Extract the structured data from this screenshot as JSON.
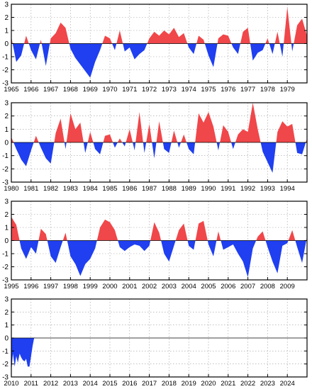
{
  "colors": {
    "positive": "#f0474a",
    "negative": "#1f3ff0",
    "frame": "#000000",
    "grid": "#9a9a9a"
  },
  "chart_data": [
    {
      "type": "area",
      "yticks": [
        3,
        2,
        1,
        0,
        -1,
        -2,
        -3
      ],
      "ylim": [
        -3,
        3
      ],
      "xlim": [
        1965,
        1980
      ],
      "xticks": [
        "1965",
        "1966",
        "1967",
        "1968",
        "1969",
        "1970",
        "1971",
        "1972",
        "1973",
        "1974",
        "1975",
        "1976",
        "1977",
        "1978",
        "1979"
      ],
      "grid": true,
      "series": [
        {
          "x": [
            1965.0,
            1965.25,
            1965.5,
            1965.75,
            1966.0,
            1966.25,
            1966.5,
            1966.75,
            1967.0,
            1967.25,
            1967.5,
            1967.75,
            1968.0,
            1968.25,
            1968.5,
            1968.75,
            1969.0,
            1969.25,
            1969.5,
            1969.75,
            1970.0,
            1970.25,
            1970.5,
            1970.75,
            1971.0,
            1971.25,
            1971.5,
            1971.75,
            1972.0,
            1972.25,
            1972.5,
            1972.75,
            1973.0,
            1973.25,
            1973.5,
            1973.75,
            1974.0,
            1974.25,
            1974.5,
            1974.75,
            1975.0,
            1975.25,
            1975.5,
            1975.75,
            1976.0,
            1976.25,
            1976.5,
            1976.75,
            1977.0,
            1977.25,
            1977.5,
            1977.75,
            1978.0,
            1978.25,
            1978.5,
            1978.75,
            1979.0,
            1979.25,
            1979.5,
            1979.75,
            1980.0
          ],
          "y": [
            0.5,
            -1.4,
            -0.9,
            0.6,
            -0.5,
            -1.2,
            0.3,
            -1.7,
            0.4,
            0.8,
            1.6,
            1.2,
            -0.4,
            -1.1,
            -1.6,
            -2.1,
            -2.6,
            -1.4,
            -0.5,
            0.6,
            0.4,
            -0.5,
            1.0,
            -0.6,
            -0.3,
            -1.2,
            -0.8,
            -0.5,
            0.4,
            0.9,
            0.6,
            1.0,
            0.7,
            1.2,
            0.5,
            0.8,
            -0.3,
            -0.8,
            0.6,
            0.3,
            -0.9,
            -1.8,
            0.4,
            0.7,
            0.6,
            -0.3,
            -0.8,
            0.9,
            1.2,
            -1.3,
            -0.7,
            -0.5,
            0.4,
            -0.8,
            0.9,
            -1.0,
            2.8,
            -0.6,
            1.4,
            1.9,
            0.6
          ]
        }
      ]
    },
    {
      "type": "area",
      "yticks": [
        3,
        2,
        1,
        0,
        -1,
        -2,
        -3
      ],
      "ylim": [
        -3,
        3
      ],
      "xlim": [
        1980,
        1995
      ],
      "xticks": [
        "1980",
        "1981",
        "1982",
        "1983",
        "1984",
        "1985",
        "1986",
        "1987",
        "1988",
        "1989",
        "1990",
        "1991",
        "1992",
        "1993",
        "1994"
      ],
      "grid": true,
      "series": [
        {
          "x": [
            1980.0,
            1980.25,
            1980.5,
            1980.75,
            1981.0,
            1981.25,
            1981.5,
            1981.75,
            1982.0,
            1982.25,
            1982.5,
            1982.75,
            1983.0,
            1983.25,
            1983.5,
            1983.75,
            1984.0,
            1984.25,
            1984.5,
            1984.75,
            1985.0,
            1985.25,
            1985.5,
            1985.75,
            1986.0,
            1986.25,
            1986.5,
            1986.75,
            1987.0,
            1987.25,
            1987.5,
            1987.75,
            1988.0,
            1988.25,
            1988.5,
            1988.75,
            1989.0,
            1989.25,
            1989.5,
            1989.75,
            1990.0,
            1990.25,
            1990.5,
            1990.75,
            1991.0,
            1991.25,
            1991.5,
            1991.75,
            1992.0,
            1992.25,
            1992.5,
            1992.75,
            1993.0,
            1993.25,
            1993.5,
            1993.75,
            1994.0,
            1994.25,
            1994.5,
            1994.75,
            1995.0
          ],
          "y": [
            0.4,
            -0.5,
            -1.3,
            -1.8,
            -0.6,
            0.5,
            -0.4,
            -1.2,
            -1.6,
            0.7,
            1.8,
            -0.5,
            2.2,
            1.0,
            1.5,
            -0.8,
            0.8,
            -0.5,
            -0.9,
            0.5,
            0.6,
            -0.4,
            0.3,
            -0.3,
            1.0,
            -0.6,
            2.3,
            -0.8,
            1.4,
            -1.2,
            1.6,
            -0.5,
            -0.8,
            0.9,
            -0.4,
            0.6,
            -0.5,
            -0.9,
            2.2,
            1.5,
            2.3,
            1.2,
            -0.6,
            1.3,
            0.8,
            -0.5,
            0.6,
            1.0,
            0.8,
            3.0,
            1.0,
            -0.7,
            -1.5,
            -2.3,
            0.8,
            1.6,
            1.2,
            1.4,
            -0.8,
            -0.9,
            0.3
          ]
        }
      ]
    },
    {
      "type": "area",
      "yticks": [
        3,
        2,
        1,
        0,
        -1,
        -2,
        -3
      ],
      "ylim": [
        -3,
        3
      ],
      "xlim": [
        1995,
        2010
      ],
      "xticks": [
        "1995",
        "1996",
        "1997",
        "1998",
        "1999",
        "2000",
        "2001",
        "2002",
        "2003",
        "2004",
        "2005",
        "2006",
        "2007",
        "2008",
        "2009"
      ],
      "grid": true,
      "series": [
        {
          "x": [
            1995.0,
            1995.25,
            1995.5,
            1995.75,
            1996.0,
            1996.25,
            1996.5,
            1996.75,
            1997.0,
            1997.25,
            1997.5,
            1997.75,
            1998.0,
            1998.25,
            1998.5,
            1998.75,
            1999.0,
            1999.25,
            1999.5,
            1999.75,
            2000.0,
            2000.25,
            2000.5,
            2000.75,
            2001.0,
            2001.25,
            2001.5,
            2001.75,
            2002.0,
            2002.25,
            2002.5,
            2002.75,
            2003.0,
            2003.25,
            2003.5,
            2003.75,
            2004.0,
            2004.25,
            2004.5,
            2004.75,
            2005.0,
            2005.25,
            2005.5,
            2005.75,
            2006.0,
            2006.25,
            2006.5,
            2006.75,
            2007.0,
            2007.25,
            2007.5,
            2007.75,
            2008.0,
            2008.25,
            2008.5,
            2008.75,
            2009.0,
            2009.25,
            2009.5,
            2009.75,
            2010.0
          ],
          "y": [
            1.8,
            1.2,
            -0.6,
            -1.4,
            -0.5,
            -1.0,
            0.9,
            0.5,
            -1.2,
            -1.7,
            -0.5,
            0.6,
            -1.2,
            -1.8,
            -2.7,
            -1.8,
            -1.4,
            -0.6,
            1.0,
            1.6,
            1.4,
            0.8,
            -0.5,
            -0.8,
            -0.5,
            -0.3,
            -0.4,
            -0.8,
            -0.4,
            1.4,
            0.6,
            -1.0,
            -1.6,
            -0.4,
            0.8,
            1.3,
            -0.4,
            -0.7,
            1.3,
            1.5,
            -0.3,
            -1.2,
            0.7,
            -0.7,
            -0.5,
            -0.3,
            -1.0,
            -1.6,
            -2.8,
            -0.6,
            0.3,
            0.7,
            -0.5,
            -1.6,
            -2.5,
            -0.4,
            -0.2,
            0.8,
            -0.5,
            -1.7,
            0.3
          ]
        }
      ]
    },
    {
      "type": "area",
      "yticks": [
        3,
        2,
        1,
        0,
        -1,
        -2,
        -3
      ],
      "ylim": [
        -3,
        3
      ],
      "xlim": [
        2010,
        2025
      ],
      "xticks": [
        "2010",
        "2011",
        "2012",
        "2013",
        "2014",
        "2015",
        "2016",
        "2017",
        "2018",
        "2019",
        "2020",
        "2021",
        "2022",
        "2023",
        "2024"
      ],
      "grid": true,
      "series": [
        {
          "x": [
            2010.0,
            2010.08,
            2010.17,
            2010.25,
            2010.33,
            2010.42,
            2010.5,
            2010.58,
            2010.67,
            2010.75,
            2010.83,
            2010.92,
            2011.0,
            2011.08,
            2011.17
          ],
          "y": [
            -2.6,
            -1.2,
            -2.2,
            -1.4,
            -1.9,
            -1.2,
            -1.5,
            -1.7,
            -1.8,
            -1.6,
            -2.2,
            -2.2,
            -1.4,
            -0.6,
            0.1
          ]
        }
      ]
    }
  ]
}
